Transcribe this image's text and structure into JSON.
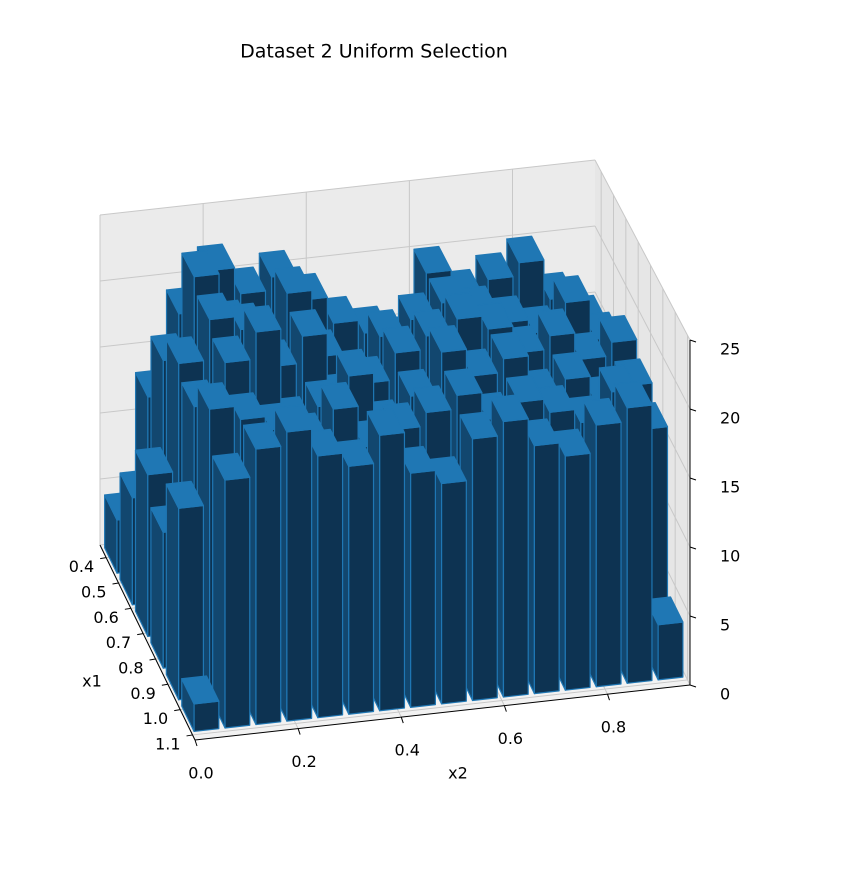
{
  "chart_data": {
    "type": "bar3d",
    "title": "Dataset 2 Uniform Selection",
    "xlabel": "x2",
    "ylabel": "x1",
    "color": "#1f77b4",
    "x1_bins": [
      0.35,
      0.475,
      0.6,
      0.725,
      0.85,
      0.975,
      1.1
    ],
    "x2_bins": [
      0,
      0.06,
      0.12,
      0.18,
      0.24,
      0.3,
      0.36,
      0.42,
      0.48,
      0.54,
      0.6,
      0.66,
      0.72,
      0.78,
      0.84,
      0.9,
      0.96
    ],
    "values": [
      [
        4,
        13,
        19,
        22,
        20,
        21,
        19,
        17,
        16,
        15,
        20,
        18,
        19,
        20,
        17,
        15
      ],
      [
        8,
        18,
        24,
        20,
        18,
        22,
        17,
        15,
        18,
        19,
        20,
        19,
        18,
        17,
        19,
        16
      ],
      [
        12,
        20,
        23,
        22,
        19,
        21,
        16,
        17,
        19,
        20,
        21,
        20,
        18,
        19,
        17,
        18
      ],
      [
        10,
        19,
        22,
        24,
        17,
        18,
        20,
        16,
        18,
        21,
        19,
        20,
        17,
        18,
        16,
        17
      ],
      [
        14,
        21,
        20,
        19,
        18,
        20,
        17,
        18,
        19,
        20,
        18,
        19,
        18,
        17,
        19,
        16
      ],
      [
        2,
        18,
        20,
        21,
        19,
        18,
        20,
        17,
        16,
        19,
        20,
        18,
        17,
        19,
        20,
        4
      ]
    ],
    "xlim": [
      0,
      0.96
    ],
    "xticks": [
      {
        "value": 0,
        "label": "0.0"
      },
      0.2,
      0.4,
      0.6,
      0.8
    ],
    "ylim": [
      0.35,
      1.12
    ],
    "yticks": [
      0.4,
      0.5,
      0.6,
      0.7,
      0.8,
      0.9,
      {
        "value": 1,
        "label": "1.0"
      },
      1.1
    ],
    "zlim": [
      0,
      25
    ],
    "zticks": [
      0,
      5,
      10,
      15,
      20,
      25
    ],
    "grid": true
  }
}
